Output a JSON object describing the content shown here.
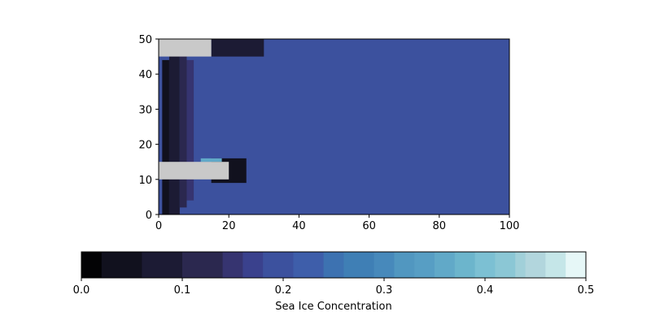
{
  "chart_data": [
    {
      "type": "heatmap",
      "title": "",
      "xlabel": "",
      "ylabel": "",
      "xlim": [
        0,
        100
      ],
      "ylim": [
        0,
        50
      ],
      "x_ticks": [
        0,
        20,
        40,
        60,
        80,
        100
      ],
      "y_ticks": [
        0,
        10,
        20,
        30,
        40,
        50
      ],
      "x_tick_labels": [
        "0",
        "20",
        "40",
        "60",
        "80",
        "100"
      ],
      "y_tick_labels": [
        "0",
        "10",
        "20",
        "30",
        "40",
        "50"
      ],
      "background_value": 0.18,
      "land_color": "#c9c9c9",
      "land_regions": [
        {
          "x": [
            0,
            20
          ],
          "y": [
            10,
            15
          ]
        },
        {
          "x": [
            0,
            15
          ],
          "y": [
            45,
            50
          ]
        }
      ],
      "ice_regions": [
        {
          "x": [
            1,
            3
          ],
          "y": [
            0,
            44
          ],
          "value": 0.03
        },
        {
          "x": [
            3,
            6
          ],
          "y": [
            0,
            46
          ],
          "value": 0.06
        },
        {
          "x": [
            6,
            8
          ],
          "y": [
            2,
            46
          ],
          "value": 0.1
        },
        {
          "x": [
            8,
            10
          ],
          "y": [
            4,
            44
          ],
          "value": 0.14
        },
        {
          "x": [
            15,
            25
          ],
          "y": [
            9,
            16
          ],
          "value": 0.04
        },
        {
          "x": [
            15,
            30
          ],
          "y": [
            45,
            50
          ],
          "value": 0.08
        },
        {
          "x": [
            12,
            18
          ],
          "y": [
            15,
            16
          ],
          "value": 0.35
        }
      ]
    },
    {
      "type": "colorbar",
      "label": "Sea Ice Concentration",
      "range": [
        0,
        0.5
      ],
      "ticks": [
        0,
        0.1,
        0.2,
        0.3,
        0.4,
        0.5
      ],
      "tick_labels": [
        "0.0",
        "0.1",
        "0.2",
        "0.3",
        "0.4",
        "0.5"
      ],
      "colormap": "ice",
      "boundaries": [
        0.0,
        0.02,
        0.06,
        0.1,
        0.14,
        0.16,
        0.18,
        0.21,
        0.24,
        0.26,
        0.29,
        0.31,
        0.33,
        0.35,
        0.37,
        0.39,
        0.41,
        0.43,
        0.44,
        0.46,
        0.48,
        0.5
      ],
      "colors": [
        "#030305",
        "#11111e",
        "#1c1b34",
        "#2b284f",
        "#363470",
        "#3a418d",
        "#3c519e",
        "#3e5eaa",
        "#3d72b1",
        "#3f7fb5",
        "#4789bb",
        "#5197c0",
        "#579ec4",
        "#61a9c8",
        "#6cb5cc",
        "#7cc0d3",
        "#8bc7d5",
        "#a1d0d9",
        "#b2d6dd",
        "#c5e6e8",
        "#e6f7f7"
      ]
    }
  ]
}
